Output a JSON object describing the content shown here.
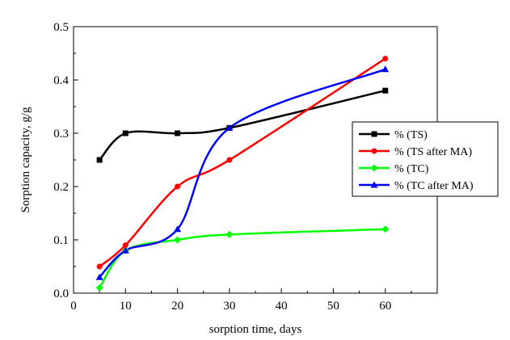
{
  "chart_data": {
    "type": "line",
    "xlabel": "sorption time, days",
    "ylabel": "Sorption capacity, g/g",
    "xlim": [
      0,
      70
    ],
    "ylim": [
      0,
      0.5
    ],
    "x_ticks": [
      "0",
      "10",
      "20",
      "30",
      "40",
      "50",
      "60"
    ],
    "y_ticks": [
      "0.0",
      "0.1",
      "0.2",
      "0.3",
      "0.4",
      "0.5"
    ],
    "grid": false,
    "legend_position": "right",
    "series": [
      {
        "name": "% (TS)",
        "color": "#000000",
        "marker": "square",
        "x": [
          5,
          10,
          20,
          30,
          60
        ],
        "y": [
          0.25,
          0.3,
          0.3,
          0.31,
          0.38
        ]
      },
      {
        "name": "% (TS after MA)",
        "color": "#ff0000",
        "marker": "circle",
        "x": [
          5,
          10,
          20,
          30,
          60
        ],
        "y": [
          0.05,
          0.09,
          0.2,
          0.25,
          0.44
        ]
      },
      {
        "name": "% (TC)",
        "color": "#00ff00",
        "marker": "diamond",
        "x": [
          5,
          10,
          20,
          30,
          60
        ],
        "y": [
          0.01,
          0.08,
          0.1,
          0.11,
          0.12
        ]
      },
      {
        "name": "% (TC after MA)",
        "color": "#0000ff",
        "marker": "triangle",
        "x": [
          5,
          10,
          20,
          30,
          60
        ],
        "y": [
          0.03,
          0.08,
          0.12,
          0.31,
          0.42
        ]
      }
    ]
  }
}
